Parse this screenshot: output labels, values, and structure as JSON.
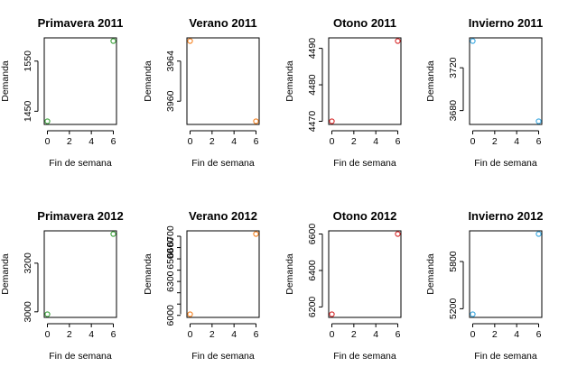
{
  "chart_data": [
    {
      "type": "scatter",
      "title": "Primavera 2011",
      "xlabel": "Fin de semana",
      "ylabel": "Demanda",
      "color": "#3aa33a",
      "x": [
        0,
        6
      ],
      "y": [
        1430,
        1590
      ],
      "xlim": [
        0,
        6
      ],
      "ylim": [
        1430,
        1590
      ],
      "xticks": [
        0,
        2,
        4,
        6
      ],
      "yticks": [
        1450,
        1550
      ]
    },
    {
      "type": "scatter",
      "title": "Verano 2011",
      "xlabel": "Fin de semana",
      "ylabel": "Demanda",
      "color": "#f58220",
      "x": [
        0,
        6
      ],
      "y": [
        3966,
        3958
      ],
      "xlim": [
        0,
        6
      ],
      "ylim": [
        3958,
        3966
      ],
      "xticks": [
        0,
        2,
        4,
        6
      ],
      "yticks": [
        3960,
        3964
      ]
    },
    {
      "type": "scatter",
      "title": "Otono 2011",
      "xlabel": "Fin de semana",
      "ylabel": "Demanda",
      "color": "#d62728",
      "x": [
        0,
        6
      ],
      "y": [
        4470,
        4492
      ],
      "xlim": [
        0,
        6
      ],
      "ylim": [
        4470,
        4492
      ],
      "xticks": [
        0,
        2,
        4,
        6
      ],
      "yticks": [
        4470,
        4480,
        4490
      ]
    },
    {
      "type": "scatter",
      "title": "Invierno 2011",
      "xlabel": "Fin de semana",
      "ylabel": "Demanda",
      "color": "#35a6e0",
      "x": [
        0,
        6
      ],
      "y": [
        3745,
        3670
      ],
      "xlim": [
        0,
        6
      ],
      "ylim": [
        3670,
        3745
      ],
      "xticks": [
        0,
        2,
        4,
        6
      ],
      "yticks": [
        3680,
        3720
      ]
    },
    {
      "type": "scatter",
      "title": "Primavera 2012",
      "xlabel": "Fin de semana",
      "ylabel": "Demanda",
      "color": "#3aa33a",
      "x": [
        0,
        6
      ],
      "y": [
        2990,
        3320
      ],
      "xlim": [
        0,
        6
      ],
      "ylim": [
        2990,
        3320
      ],
      "xticks": [
        0,
        2,
        4,
        6
      ],
      "yticks": [
        3000,
        3200
      ]
    },
    {
      "type": "scatter",
      "title": "Verano 2012",
      "xlabel": "Fin de semana",
      "ylabel": "Demanda",
      "color": "#f58220",
      "x": [
        0,
        6
      ],
      "y": [
        6010,
        6720
      ],
      "xlim": [
        0,
        6
      ],
      "ylim": [
        6010,
        6720
      ],
      "xticks": [
        0,
        2,
        4,
        6
      ],
      "yticks": [
        6000,
        6100,
        6200,
        6300,
        6400,
        6500,
        6600,
        6700
      ],
      "ytick_labels": [
        "6000",
        "",
        "",
        "6300",
        "",
        "6500",
        "6600",
        "6700"
      ]
    },
    {
      "type": "scatter",
      "title": "Otono 2012",
      "xlabel": "Fin de semana",
      "ylabel": "Demanda",
      "color": "#d62728",
      "x": [
        0,
        6
      ],
      "y": [
        6160,
        6600
      ],
      "xlim": [
        0,
        6
      ],
      "ylim": [
        6160,
        6600
      ],
      "xticks": [
        0,
        2,
        4,
        6
      ],
      "yticks": [
        6200,
        6400,
        6600
      ]
    },
    {
      "type": "scatter",
      "title": "Invierno 2012",
      "xlabel": "Fin de semana",
      "ylabel": "Demanda",
      "color": "#35a6e0",
      "x": [
        0,
        6
      ],
      "y": [
        5130,
        6150
      ],
      "xlim": [
        0,
        6
      ],
      "ylim": [
        5130,
        6150
      ],
      "xticks": [
        0,
        2,
        4,
        6
      ],
      "yticks": [
        5200,
        5800
      ]
    }
  ]
}
